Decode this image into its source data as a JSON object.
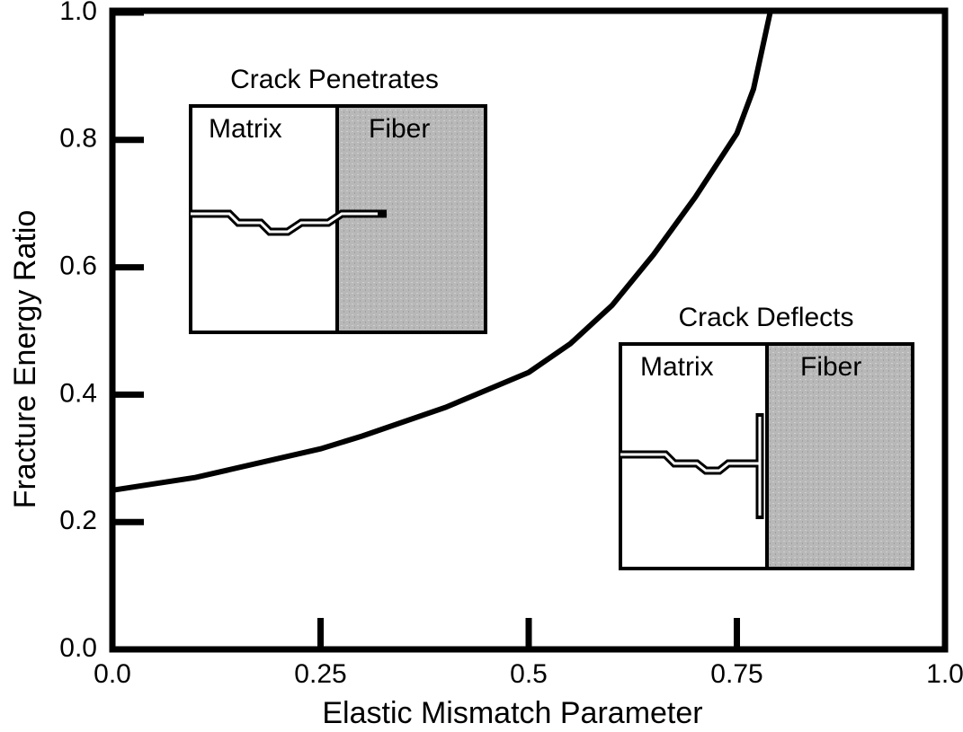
{
  "chart_data": {
    "type": "line",
    "x_label": "Elastic Mismatch Parameter",
    "y_label": "Fracture Energy Ratio",
    "x": [
      0,
      0.1,
      0.2,
      0.25,
      0.3,
      0.4,
      0.5,
      0.55,
      0.6,
      0.65,
      0.7,
      0.75,
      0.77,
      0.79
    ],
    "values": [
      0.25,
      0.27,
      0.3,
      0.315,
      0.335,
      0.38,
      0.435,
      0.48,
      0.54,
      0.62,
      0.71,
      0.81,
      0.88,
      1.0
    ],
    "color": "#000000",
    "xlim": [
      0,
      1
    ],
    "xticks": [
      {
        "value": 0,
        "label": "0.0"
      },
      0.25,
      0.5,
      0.75,
      {
        "value": 1,
        "label": "1.0"
      }
    ],
    "ylim": [
      0,
      1
    ],
    "yticks": [
      {
        "value": 0,
        "label": "0.0"
      },
      0.2,
      0.4,
      0.6,
      0.8,
      {
        "value": 1,
        "label": "1.0"
      }
    ],
    "insets": [
      {
        "title": "Crack Penetrates",
        "left": "Matrix",
        "right": "Fiber"
      },
      {
        "title": "Crack Deflects",
        "left": "Matrix",
        "right": "Fiber"
      }
    ]
  }
}
